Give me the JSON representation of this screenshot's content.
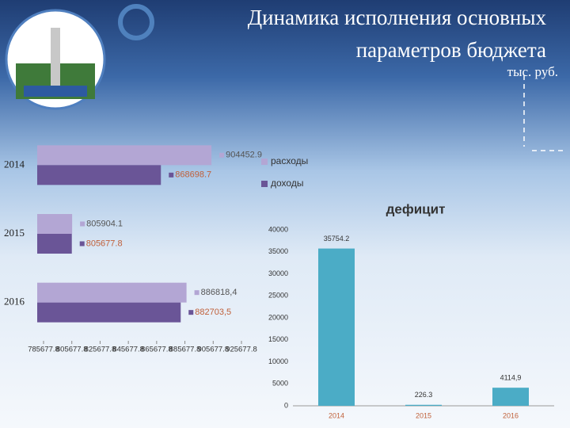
{
  "header": {
    "title_line1": "Динамика исполнения основных",
    "title_line2": "параметров  бюджета",
    "unit": "тыс. руб."
  },
  "chart_data": [
    {
      "type": "barh",
      "categories": [
        "2014",
        "2015",
        "2016"
      ],
      "series": [
        {
          "name": "расходы",
          "color": "#b3a6d4",
          "values": [
            904452.9,
            805904.1,
            886818.4
          ],
          "value_labels": [
            "904452.9",
            "805904.1",
            "886818,4"
          ]
        },
        {
          "name": "доходы",
          "color": "#6a5597",
          "values": [
            868698.7,
            805677.8,
            882703.5
          ],
          "value_labels": [
            "868698.7",
            "805677.8",
            "882703,5"
          ]
        }
      ],
      "xlim": [
        785677.8,
        925677.8
      ],
      "xticks": [
        785677.8,
        805677.8,
        825677.8,
        845677.8,
        865677.8,
        885677.8,
        905677.8,
        925677.8
      ]
    },
    {
      "type": "bar",
      "title": "дефицит",
      "categories": [
        "2014",
        "2015",
        "2016"
      ],
      "values": [
        35754.2,
        226.3,
        4114.9
      ],
      "value_labels": [
        "35754.2",
        "226.3",
        "4114,9"
      ],
      "color": "#4bacc6",
      "ylim": [
        0,
        40000
      ],
      "yticks": [
        0,
        5000,
        10000,
        15000,
        20000,
        25000,
        30000,
        35000,
        40000
      ]
    }
  ]
}
